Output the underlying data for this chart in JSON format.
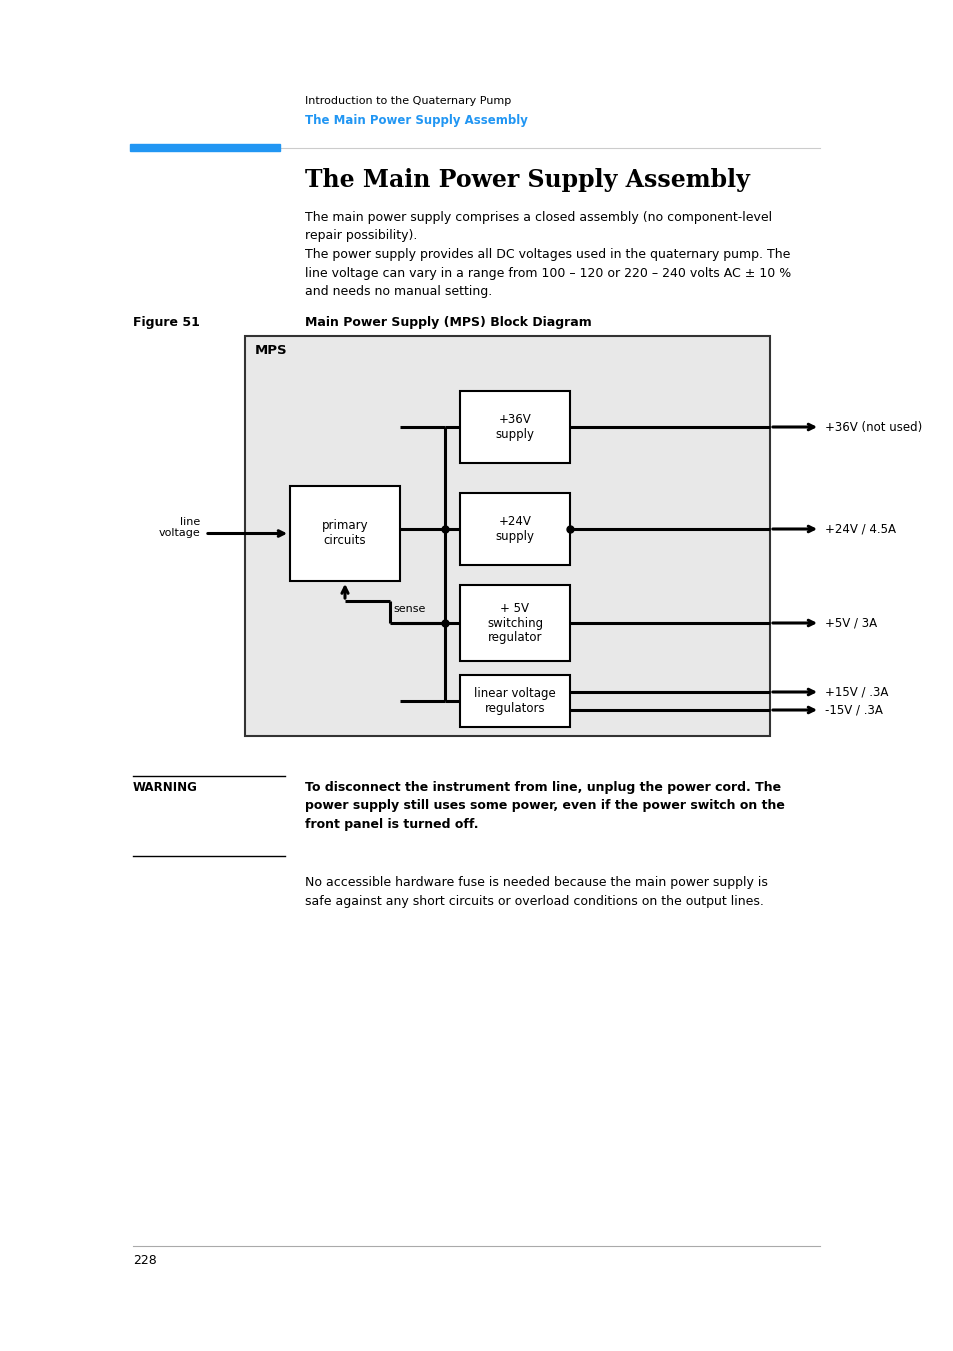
{
  "page_bg": "#ffffff",
  "header_text1": "Introduction to the Quaternary Pump",
  "header_text2": "The Main Power Supply Assembly",
  "header_text1_color": "#000000",
  "header_text2_color": "#2196F3",
  "blue_bar_color": "#2196F3",
  "separator_color": "#cccccc",
  "title": "The Main Power Supply Assembly",
  "para1": "The main power supply comprises a closed assembly (no component-level\nrepair possibility).",
  "para2": "The power supply provides all DC voltages used in the quaternary pump. The\nline voltage can vary in a range from 100 – 120 or 220 – 240 volts AC ± 10 %\nand needs no manual setting.",
  "figure_label": "Figure 51",
  "figure_title": "Main Power Supply (MPS) Block Diagram",
  "diagram_bg": "#e8e8e8",
  "diagram_box_bg": "#ffffff",
  "mps_label": "MPS",
  "box_36v": "+36V\nsupply",
  "box_24v": "+24V\nsupply",
  "box_5v": "+ 5V\nswitching\nregulator",
  "box_linear": "linear voltage\nregulators",
  "box_primary": "primary\ncircuits",
  "label_line_voltage": "line\nvoltage",
  "label_sense": "sense",
  "out_36v": "+36V (not used)",
  "out_24v": "+24V / 4.5A",
  "out_5v": "+5V / 3A",
  "out_15v": "+15V / .3A",
  "out_neg15v": "-15V / .3A",
  "warning_label": "WARNING",
  "warning_text": "To disconnect the instrument from line, unplug the power cord. The\npower supply still uses some power, even if the power switch on the\nfront panel is turned off.",
  "para3": "No accessible hardware fuse is needed because the main power supply is\nsafe against any short circuits or overload conditions on the output lines.",
  "page_number": "228"
}
